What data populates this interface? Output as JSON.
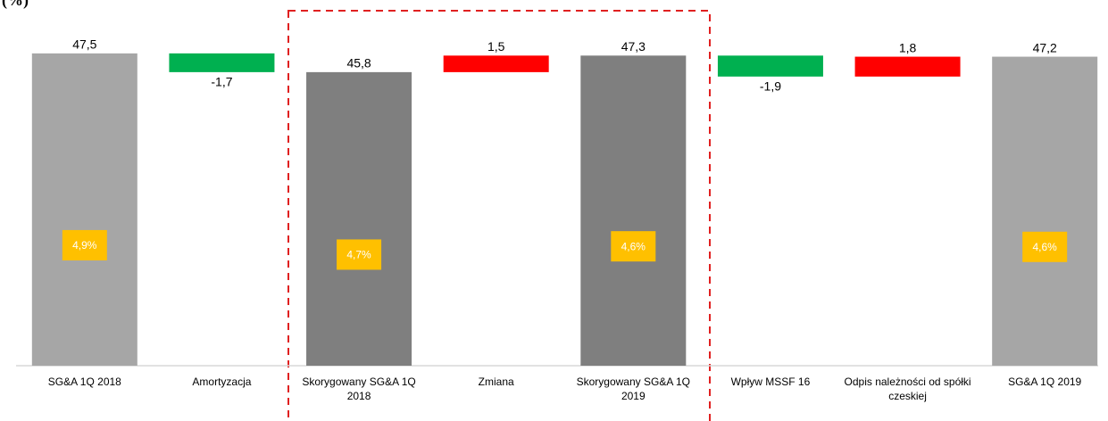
{
  "chart_data": {
    "type": "waterfall",
    "title": "(%)",
    "categories": [
      "SG&A 1Q 2018",
      "Amortyzacja",
      "Skorygowany SG&A 1Q 2018",
      "Zmiana",
      "Skorygowany SG&A 1Q 2019",
      "Wpływ MSSF 16",
      "Odpis należności od spółki czeskiej",
      "SG&A 1Q 2019"
    ],
    "values": [
      47.5,
      -1.7,
      45.8,
      1.5,
      47.3,
      -1.9,
      1.8,
      47.2
    ],
    "value_labels": [
      "47,5",
      "-1,7",
      "45,8",
      "1,5",
      "47,3",
      "-1,9",
      "1,8",
      "47,2"
    ],
    "measure": [
      "total",
      "relative",
      "total",
      "relative",
      "total",
      "relative",
      "relative",
      "total"
    ],
    "colors": [
      "#a6a6a6",
      "#00b050",
      "#7f7f7f",
      "#ff0000",
      "#7f7f7f",
      "#00b050",
      "#ff0000",
      "#a6a6a6"
    ],
    "pct_labels": [
      "4,9%",
      null,
      "4,7%",
      null,
      "4,6%",
      null,
      null,
      "4,6%"
    ],
    "pct_color": "#ffc000",
    "ylim": [
      19.2,
      48.7
    ]
  }
}
